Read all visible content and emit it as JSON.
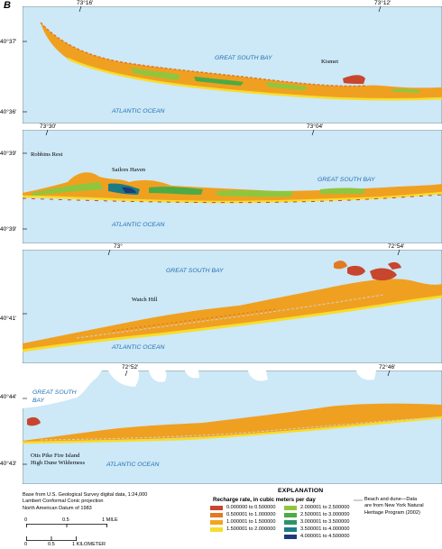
{
  "figure_letter": "B",
  "colors": {
    "water": "#cde8f6",
    "land_base": "#f0a020",
    "beach": "#f7ea4a"
  },
  "panels": [
    {
      "latitudes": [
        "40°37'",
        "40°36'"
      ],
      "longitudes": [
        "73°16'",
        "73°12'"
      ],
      "water_labels": [
        "GREAT SOUTH BAY",
        "ATLANTIC OCEAN"
      ],
      "place_labels": [
        "Kismet"
      ]
    },
    {
      "latitudes": [
        "40°39'",
        "40°39'"
      ],
      "longitudes": [
        "73°30'",
        "73°04'"
      ],
      "water_labels": [
        "GREAT SOUTH BAY",
        "ATLANTIC OCEAN"
      ],
      "place_labels": [
        "Robbins Rest",
        "Sailors Haven"
      ]
    },
    {
      "latitudes": [
        "40°41'"
      ],
      "longitudes": [
        "73°",
        "72°54'"
      ],
      "water_labels": [
        "GREAT SOUTH BAY",
        "ATLANTIC OCEAN"
      ],
      "place_labels": [
        "Watch Hill"
      ]
    },
    {
      "latitudes": [
        "40°44'",
        "40°43'"
      ],
      "longitudes": [
        "72°52'",
        "72°46'"
      ],
      "water_labels": [
        "GREAT SOUTH",
        "BAY",
        "ATLANTIC OCEAN"
      ],
      "place_labels": [
        "Otis Pike Fire Island",
        "High Dune Wilderness"
      ]
    }
  ],
  "credits": [
    "Base from U.S. Geological Survey digital data, 1:24,000",
    "Lambert Conformal Conic projection",
    "North American Datum of 1983"
  ],
  "scale_bars": {
    "miles": {
      "ticks": [
        "0",
        "0.5",
        "1 MILE"
      ]
    },
    "kilometers": {
      "ticks": [
        "0",
        "0.5",
        "1 KILOMETER"
      ]
    }
  },
  "legend": {
    "title": "EXPLANATION",
    "subtitle": "Recharge rate, in cubic meters per day",
    "items": [
      {
        "label": "0.000000 to 0.500000",
        "color": "#c8452e"
      },
      {
        "label": "0.500001 to 1.000000",
        "color": "#e27a22"
      },
      {
        "label": "1.000001 to 1.500000",
        "color": "#f2a51d"
      },
      {
        "label": "1.500001 to 2.000000",
        "color": "#f7dd2b"
      },
      {
        "label": "2.000001 to 2.500000",
        "color": "#8fc63e"
      },
      {
        "label": "2.500001 to 3.000000",
        "color": "#4cab45"
      },
      {
        "label": "3.000001 to 3.500000",
        "color": "#2b9467"
      },
      {
        "label": "3.500001 to 4.000000",
        "color": "#1c7c86"
      },
      {
        "label": "4.000001 to 4.500000",
        "color": "#1e3a7a"
      }
    ],
    "beach": {
      "label": "Beach and dune—Data are from New York Natural Heritage Program (2002)",
      "lines": [
        "Beach and dune—Data",
        "are from New York Natural",
        "Heritage Program (2002)"
      ],
      "color": "#cfcfcf"
    }
  }
}
